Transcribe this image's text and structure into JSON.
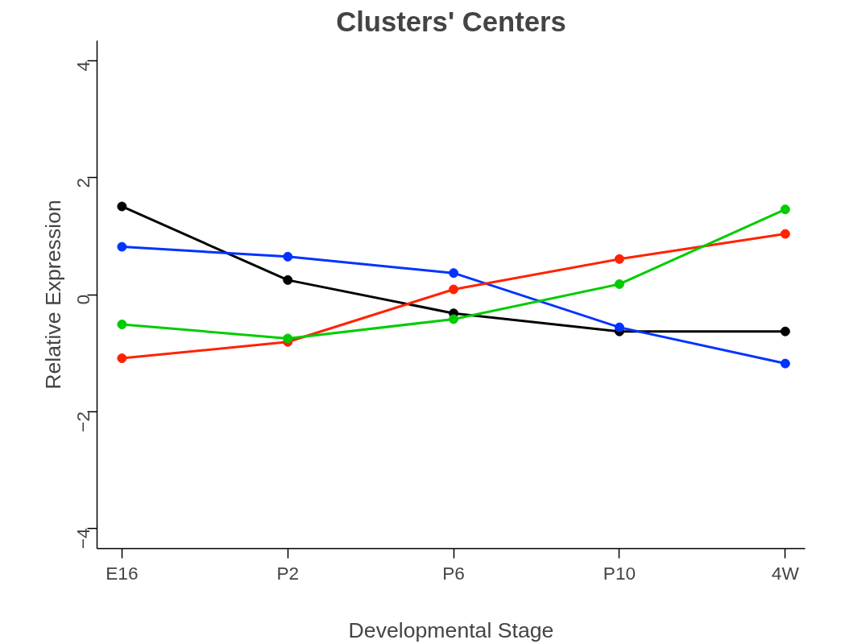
{
  "chart_data": {
    "type": "line",
    "title": "Clusters' Centers",
    "xlabel": "Developmental Stage",
    "ylabel": "Relative Expression",
    "categories": [
      "E16",
      "P2",
      "P6",
      "P10",
      "4W"
    ],
    "series": [
      {
        "color": "#000000",
        "values": [
          1.51,
          0.25,
          -0.32,
          -0.63,
          -0.63
        ]
      },
      {
        "color": "#0033ff",
        "values": [
          0.82,
          0.65,
          0.37,
          -0.56,
          -1.18
        ]
      },
      {
        "color": "#ff2200",
        "values": [
          -1.09,
          -0.81,
          0.09,
          0.61,
          1.04
        ]
      },
      {
        "color": "#00cc00",
        "values": [
          -0.51,
          -0.75,
          -0.42,
          0.18,
          1.46
        ]
      }
    ],
    "ylim": [
      -4.35,
      4.35
    ],
    "yticks": [
      -4,
      -2,
      0,
      2,
      4
    ],
    "grid": false,
    "marker": "circle",
    "line_style": "solid"
  }
}
